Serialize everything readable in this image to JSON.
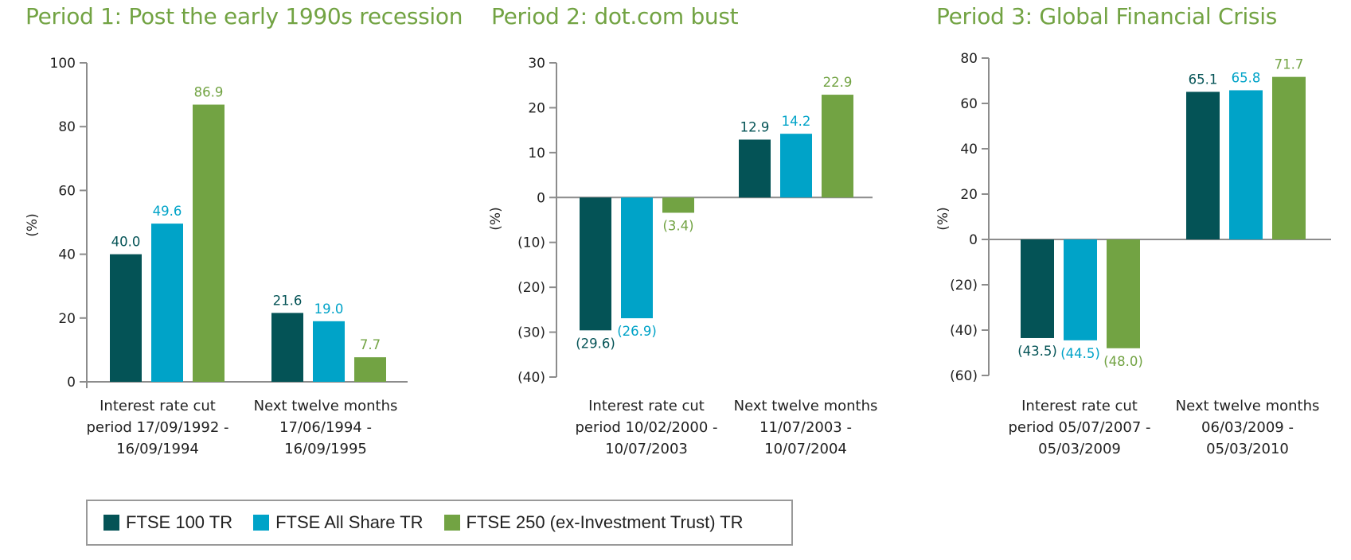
{
  "colors": {
    "title": "#72a343",
    "axis": "#8c8c8c",
    "series": [
      "#045356",
      "#00a3c8",
      "#72a343"
    ]
  },
  "legend": [
    {
      "label": "FTSE 100 TR",
      "color": "#045356"
    },
    {
      "label": "FTSE All Share TR",
      "color": "#00a3c8"
    },
    {
      "label": "FTSE 250 (ex-Investment Trust) TR",
      "color": "#72a343"
    }
  ],
  "chart_data": [
    {
      "type": "bar",
      "title": "Period 1: Post the early 1990s recession",
      "ylabel": "(%)",
      "xlabel": "",
      "ylim": [
        0,
        100
      ],
      "yticks": [
        0,
        20,
        40,
        60,
        80,
        100
      ],
      "ytick_labels": [
        "0",
        "20",
        "40",
        "60",
        "80",
        "100"
      ],
      "grid": false,
      "legend_position": "bottom",
      "categories": [
        [
          "Interest rate cut",
          "period 17/09/1992 -",
          "16/09/1994"
        ],
        [
          "Next twelve months",
          "17/06/1994 -",
          "16/09/1995"
        ]
      ],
      "series": [
        {
          "name": "FTSE 100 TR",
          "values": [
            40.0,
            21.6
          ],
          "labels": [
            "40.0",
            "21.6"
          ]
        },
        {
          "name": "FTSE All Share TR",
          "values": [
            49.6,
            19.0
          ],
          "labels": [
            "49.6",
            "19.0"
          ]
        },
        {
          "name": "FTSE 250 (ex-Investment Trust) TR",
          "values": [
            86.9,
            7.7
          ],
          "labels": [
            "86.9",
            "7.7"
          ]
        }
      ]
    },
    {
      "type": "bar",
      "title": "Period 2: dot.com bust",
      "ylabel": "(%)",
      "xlabel": "",
      "ylim": [
        -40,
        30
      ],
      "yticks": [
        -40,
        -30,
        -20,
        -10,
        0,
        10,
        20,
        30
      ],
      "ytick_labels": [
        "(40)",
        "(30)",
        "(20)",
        "(10)",
        "0",
        "10",
        "20",
        "30"
      ],
      "grid": false,
      "legend_position": "bottom",
      "categories": [
        [
          "Interest rate cut",
          "period 10/02/2000 -",
          "10/07/2003"
        ],
        [
          "Next twelve months",
          "11/07/2003 -",
          "10/07/2004"
        ]
      ],
      "series": [
        {
          "name": "FTSE 100 TR",
          "values": [
            -29.6,
            12.9
          ],
          "labels": [
            "(29.6)",
            "12.9"
          ]
        },
        {
          "name": "FTSE All Share TR",
          "values": [
            -26.9,
            14.2
          ],
          "labels": [
            "(26.9)",
            "14.2"
          ]
        },
        {
          "name": "FTSE 250 (ex-Investment Trust) TR",
          "values": [
            -3.4,
            22.9
          ],
          "labels": [
            "(3.4)",
            "22.9"
          ]
        }
      ]
    },
    {
      "type": "bar",
      "title": "Period 3: Global Financial Crisis",
      "ylabel": "(%)",
      "xlabel": "",
      "ylim": [
        -60,
        80
      ],
      "yticks": [
        -60,
        -40,
        -20,
        0,
        20,
        40,
        60,
        80
      ],
      "ytick_labels": [
        "(60)",
        "(40)",
        "(20)",
        "0",
        "20",
        "40",
        "60",
        "80"
      ],
      "grid": false,
      "legend_position": "bottom",
      "categories": [
        [
          "Interest rate cut",
          "period 05/07/2007 -",
          "05/03/2009"
        ],
        [
          "Next twelve months",
          "06/03/2009 -",
          "05/03/2010"
        ]
      ],
      "series": [
        {
          "name": "FTSE 100 TR",
          "values": [
            -43.5,
            65.1
          ],
          "labels": [
            "(43.5)",
            "65.1"
          ]
        },
        {
          "name": "FTSE All Share TR",
          "values": [
            -44.5,
            65.8
          ],
          "labels": [
            "(44.5)",
            "65.8"
          ]
        },
        {
          "name": "FTSE 250 (ex-Investment Trust) TR",
          "values": [
            -48.0,
            71.7
          ],
          "labels": [
            "(48.0)",
            "71.7"
          ]
        }
      ]
    }
  ]
}
